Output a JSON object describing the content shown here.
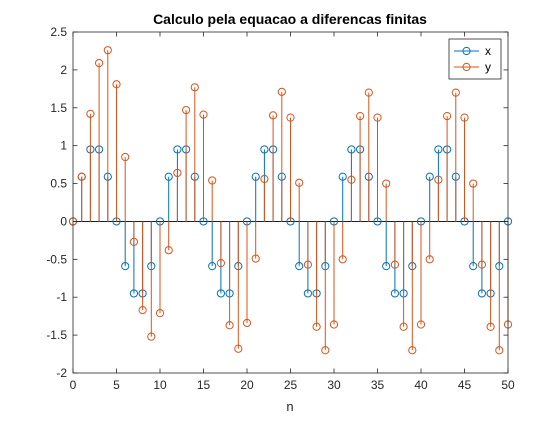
{
  "chart_data": {
    "type": "stem",
    "title": "Calculo pela equacao a diferencas finitas",
    "xlabel": "n",
    "ylabel": "",
    "xlim": [
      0,
      50
    ],
    "ylim": [
      -2,
      2.5
    ],
    "xticks": [
      0,
      5,
      10,
      15,
      20,
      25,
      30,
      35,
      40,
      45,
      50
    ],
    "yticks": [
      -2,
      -1.5,
      -1,
      -0.5,
      0,
      0.5,
      1,
      1.5,
      2,
      2.5
    ],
    "xtick_labels": [
      "0",
      "5",
      "10",
      "15",
      "20",
      "25",
      "30",
      "35",
      "40",
      "45",
      "50"
    ],
    "ytick_labels": [
      "-2",
      "-1.5",
      "-1",
      "-0.5",
      "0",
      "0.5",
      "1",
      "1.5",
      "2",
      "2.5"
    ],
    "grid": false,
    "legend": "top-right",
    "series": [
      {
        "name": "x",
        "color": "#0072BD",
        "x": [
          0,
          1,
          2,
          3,
          4,
          5,
          6,
          7,
          8,
          9,
          10,
          11,
          12,
          13,
          14,
          15,
          16,
          17,
          18,
          19,
          20,
          21,
          22,
          23,
          24,
          25,
          26,
          27,
          28,
          29,
          30,
          31,
          32,
          33,
          34,
          35,
          36,
          37,
          38,
          39,
          40,
          41,
          42,
          43,
          44,
          45,
          46,
          47,
          48,
          49,
          50
        ],
        "y": [
          0,
          0.59,
          0.95,
          0.95,
          0.59,
          0,
          -0.59,
          -0.95,
          -0.95,
          -0.59,
          0,
          0.59,
          0.95,
          0.95,
          0.59,
          0,
          -0.59,
          -0.95,
          -0.95,
          -0.59,
          0,
          0.59,
          0.95,
          0.95,
          0.59,
          0,
          -0.59,
          -0.95,
          -0.95,
          -0.59,
          0,
          0.59,
          0.95,
          0.95,
          0.59,
          0,
          -0.59,
          -0.95,
          -0.95,
          -0.59,
          0,
          0.59,
          0.95,
          0.95,
          0.59,
          0,
          -0.59,
          -0.95,
          -0.95,
          -0.59,
          0
        ]
      },
      {
        "name": "y",
        "color": "#D95319",
        "x": [
          0,
          1,
          2,
          3,
          4,
          5,
          6,
          7,
          8,
          9,
          10,
          11,
          12,
          13,
          14,
          15,
          16,
          17,
          18,
          19,
          20,
          21,
          22,
          23,
          24,
          25,
          26,
          27,
          28,
          29,
          30,
          31,
          32,
          33,
          34,
          35,
          36,
          37,
          38,
          39,
          40,
          41,
          42,
          43,
          44,
          45,
          46,
          47,
          48,
          49,
          50
        ],
        "y": [
          0,
          0.59,
          1.42,
          2.09,
          2.26,
          1.81,
          0.85,
          -0.27,
          -1.17,
          -1.52,
          -1.21,
          -0.38,
          0.64,
          1.47,
          1.77,
          1.41,
          0.54,
          -0.55,
          -1.37,
          -1.68,
          -1.34,
          -0.49,
          0.56,
          1.4,
          1.71,
          1.37,
          0.51,
          -0.57,
          -1.39,
          -1.7,
          -1.36,
          -0.5,
          0.55,
          1.39,
          1.7,
          1.37,
          0.5,
          -0.57,
          -1.39,
          -1.7,
          -1.36,
          -0.5,
          0.55,
          1.39,
          1.7,
          1.37,
          0.5,
          -0.57,
          -1.39,
          -1.7,
          -1.36
        ]
      }
    ]
  }
}
